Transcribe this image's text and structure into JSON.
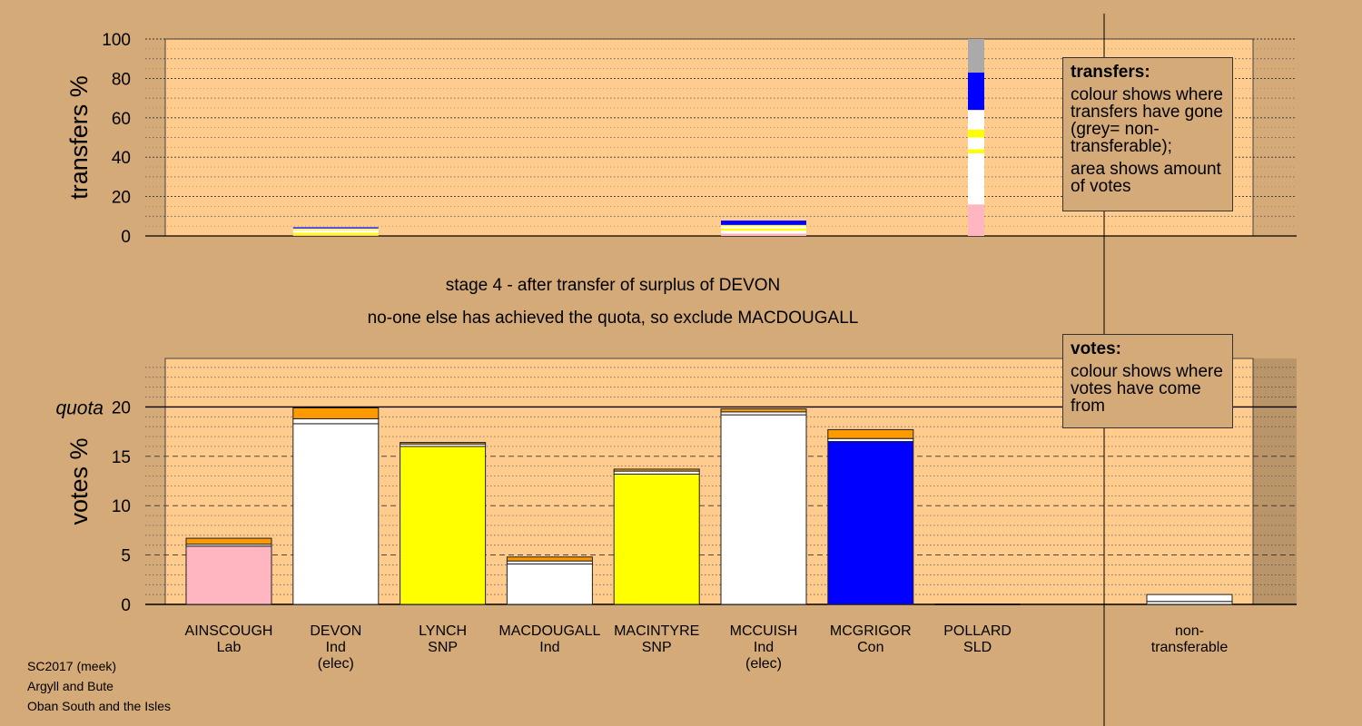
{
  "chart_data": {
    "type": "bar",
    "stacked": true,
    "candidates": [
      {
        "name": "AINSCOUGH",
        "party": "Lab",
        "status": ""
      },
      {
        "name": "DEVON",
        "party": "Ind",
        "status": "(elec)"
      },
      {
        "name": "LYNCH",
        "party": "SNP",
        "status": ""
      },
      {
        "name": "MACDOUGALL",
        "party": "Ind",
        "status": ""
      },
      {
        "name": "MACINTYRE",
        "party": "SNP",
        "status": ""
      },
      {
        "name": "MCCUISH",
        "party": "Ind",
        "status": "(elec)"
      },
      {
        "name": "MCGRIGOR",
        "party": "Con",
        "status": ""
      },
      {
        "name": "POLLARD",
        "party": "SLD",
        "status": ""
      }
    ],
    "non_transferable_label": [
      "non-",
      "transferable"
    ],
    "colors": {
      "Lab": "#ffb6c1",
      "Ind": "#ffffff",
      "SNP": "#ffff00",
      "Con": "#0000ff",
      "transfer": "#ff9900",
      "nontransferable": "#aaaaaa"
    },
    "transfers_chart": {
      "ylabel": "transfers %",
      "ylim": [
        0,
        100
      ],
      "yticks": [
        0,
        20,
        40,
        60,
        80,
        100
      ],
      "bars": [
        {
          "index": 1,
          "segments": [
            {
              "color": "#ffb6c1",
              "value": 0.4
            },
            {
              "color": "#ffff00",
              "value": 1.2
            },
            {
              "color": "#ffffff",
              "value": 1.3
            },
            {
              "color": "#ffff00",
              "value": 0.5
            },
            {
              "color": "#ffffff",
              "value": 0.4
            },
            {
              "color": "#0000ff",
              "value": 0.6
            }
          ]
        },
        {
          "index": 5,
          "segments": [
            {
              "color": "#ffb6c1",
              "value": 1.2
            },
            {
              "color": "#ffffff",
              "value": 1.5
            },
            {
              "color": "#ffff00",
              "value": 1.1
            },
            {
              "color": "#ffffff",
              "value": 1.3
            },
            {
              "color": "#ffff00",
              "value": 0.5
            },
            {
              "color": "#0000ff",
              "value": 2.2
            }
          ]
        },
        {
          "index": 7.5,
          "segments": [
            {
              "color": "#ffb6c1",
              "value": 16
            },
            {
              "color": "#ffffff",
              "value": 26
            },
            {
              "color": "#ffff00",
              "value": 2
            },
            {
              "color": "#ffffff",
              "value": 6
            },
            {
              "color": "#ffff00",
              "value": 4
            },
            {
              "color": "#ffffff",
              "value": 10
            },
            {
              "color": "#0000ff",
              "value": 19
            },
            {
              "color": "#aaaaaa",
              "value": 17
            }
          ]
        }
      ]
    },
    "votes_chart": {
      "ylabel": "votes %",
      "ylim": [
        0,
        25
      ],
      "yticks": [
        0,
        5,
        10,
        15,
        20
      ],
      "quota": 20,
      "quota_label": "quota",
      "bars": [
        {
          "index": 0,
          "first": 5.9,
          "first_color": "#ffb6c1",
          "layers": [
            0.2,
            0.6
          ]
        },
        {
          "index": 1,
          "first": 18.3,
          "first_color": "#ffffff",
          "layers": [
            0.5,
            1.1
          ]
        },
        {
          "index": 2,
          "first": 16.0,
          "first_color": "#ffff00",
          "layers": [
            0.25,
            0.15
          ]
        },
        {
          "index": 3,
          "first": 4.1,
          "first_color": "#ffffff",
          "layers": [
            0.3,
            0.4
          ]
        },
        {
          "index": 4,
          "first": 13.2,
          "first_color": "#ffff00",
          "layers": [
            0.3,
            0.2
          ]
        },
        {
          "index": 5,
          "first": 19.2,
          "first_color": "#ffffff",
          "layers": [
            0.3,
            0.3
          ]
        },
        {
          "index": 6,
          "first": 16.5,
          "first_color": "#0000ff",
          "layers": [
            0.3,
            0.9
          ]
        },
        {
          "index": 7,
          "first": 0,
          "first_color": "#ffffff",
          "layers": []
        },
        {
          "index": 9,
          "first": 0.3,
          "first_color": "#ffffff",
          "layers": [
            0.7
          ]
        }
      ]
    }
  },
  "stage_title": "stage 4 - after transfer of surplus of DEVON",
  "stage_subtitle": "no-one else has achieved the quota, so exclude MACDOUGALL",
  "legend_transfers": {
    "title": "transfers:",
    "text1": "colour shows where transfers have gone (grey= non-transferable);",
    "text2": "area shows amount of votes"
  },
  "legend_votes": {
    "title": "votes:",
    "text1": "colour shows where votes have come from"
  },
  "footer": {
    "line1": "SC2017 (meek)",
    "line2": "Argyll and Bute",
    "line3": "Oban South and the Isles"
  }
}
